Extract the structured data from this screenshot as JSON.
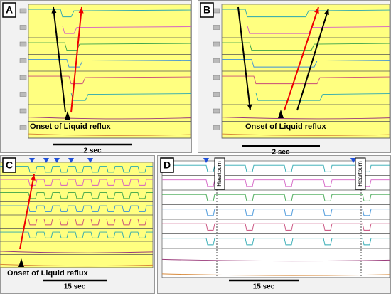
{
  "panels": [
    {
      "label": "A",
      "annotation": "Onset of Liquid reflux",
      "scale": "2 sec"
    },
    {
      "label": "B",
      "annotation": "Onset of Liquid reflux",
      "scale": "2 sec"
    },
    {
      "label": "C",
      "annotation": "Onset of Liquid reflux",
      "scale": "15 sec"
    },
    {
      "label": "D",
      "scale": "15 sec",
      "events": [
        "Heartburn",
        "Heartburn"
      ]
    }
  ]
}
